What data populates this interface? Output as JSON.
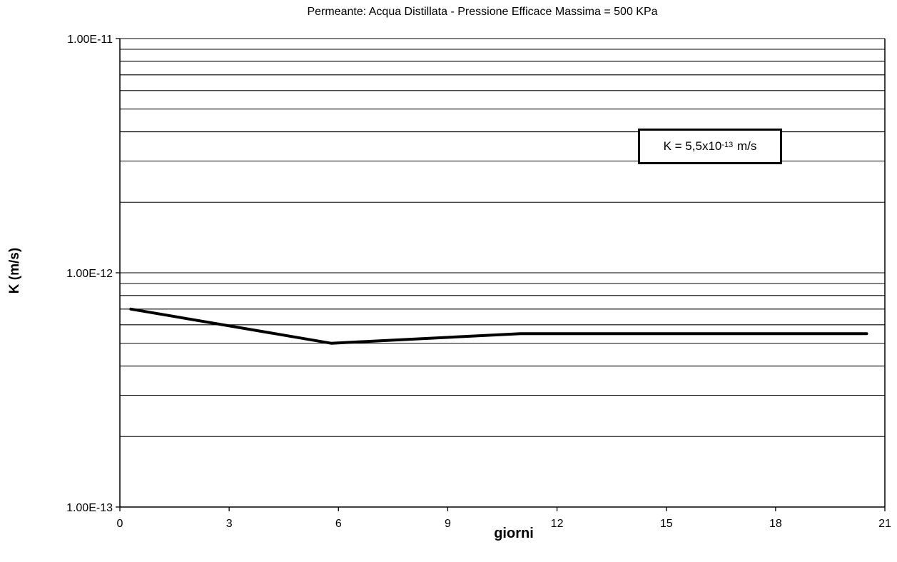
{
  "chart_data": {
    "type": "line",
    "title": "Permeante: Acqua Distillata - Pressione Efficace Massima = 500 KPa",
    "xlabel": "giorni",
    "ylabel": "K (m/s)",
    "x_scale": "linear",
    "y_scale": "log",
    "xlim": [
      0,
      21
    ],
    "ylim": [
      1e-13,
      1e-11
    ],
    "x_ticks": [
      0,
      3,
      6,
      9,
      12,
      15,
      18,
      21
    ],
    "x_tick_labels": [
      "0",
      "3",
      "6",
      "9",
      "12",
      "15",
      "18",
      "21"
    ],
    "y_ticks": [
      1e-11,
      1e-12,
      1e-13
    ],
    "y_tick_labels": [
      "1.00E-11",
      "1.00E-12",
      "1.00E-13"
    ],
    "grid": "horizontal minor log gridlines",
    "series": [
      {
        "x": [
          0.3,
          5.8,
          11.0,
          20.5
        ],
        "y": [
          7e-13,
          5e-13,
          5.5e-13,
          5.5e-13
        ]
      }
    ],
    "annotation": {
      "prefix": "K = 5,5x10",
      "exponent": "-13",
      "suffix": "m/s"
    },
    "colors": {
      "line": "#000000",
      "grid": "#000000",
      "background": "#ffffff"
    }
  }
}
